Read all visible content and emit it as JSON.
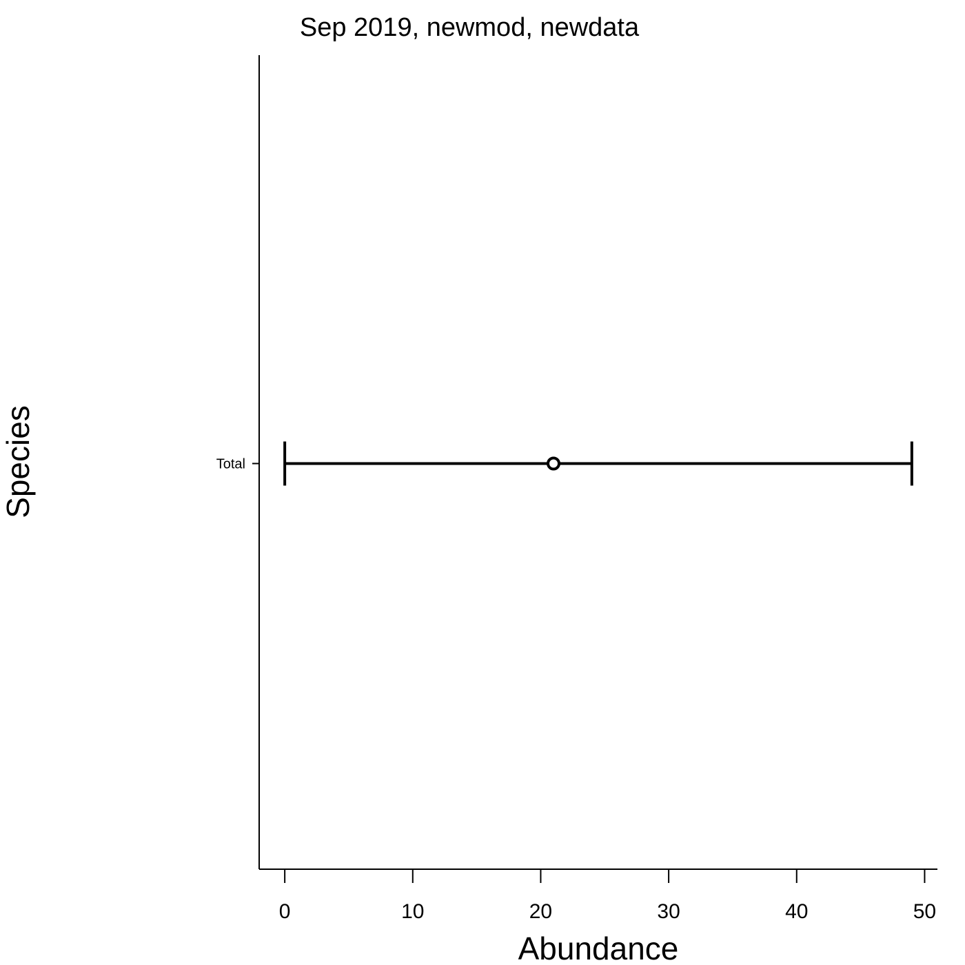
{
  "chart_data": {
    "type": "errorbar",
    "title": "Sep 2019, newmod, newdata",
    "xlabel": "Abundance",
    "ylabel": "Species",
    "xlim": [
      -2,
      51
    ],
    "x_ticks": [
      0,
      10,
      20,
      30,
      40,
      50
    ],
    "categories": [
      "Total"
    ],
    "points": [
      {
        "category": "Total",
        "estimate": 21,
        "lower": 0,
        "upper": 49
      }
    ],
    "grid": false,
    "legend": "none"
  }
}
